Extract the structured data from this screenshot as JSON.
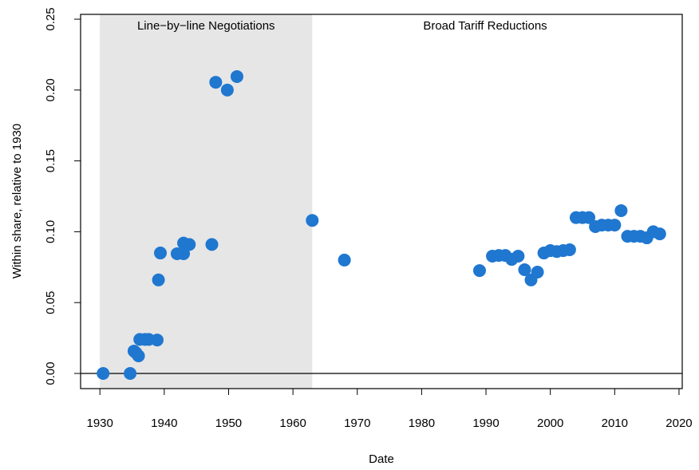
{
  "chart_data": {
    "type": "scatter",
    "x_label": "Date",
    "y_label": "Within share, relative to 1930",
    "xlim": [
      1927,
      2020.5
    ],
    "ylim": [
      -0.0107,
      0.2534
    ],
    "xticks": [
      1930,
      1940,
      1950,
      1960,
      1970,
      1980,
      1990,
      2000,
      2010,
      2020
    ],
    "yticks": [
      {
        "value": 0,
        "label": "0.00"
      },
      0.05,
      {
        "value": 0.1,
        "label": "0.10"
      },
      0.15,
      {
        "value": 0.2,
        "label": "0.20"
      },
      0.25
    ],
    "hline": 0,
    "shaded_region": {
      "x": [
        1930,
        1963
      ],
      "color": "#e6e6e6"
    },
    "annotations": [
      "Line−by−line Negotiations",
      "Broad Tariff Reductions"
    ],
    "series": [
      {
        "color": "#1f77d0",
        "x": [
          1930.5,
          1934.7,
          1935.3,
          1935.6,
          1936,
          1936.2,
          1937,
          1937.6,
          1938.9,
          1939.1,
          1939.4,
          1942,
          1943,
          1943,
          1943.9,
          1947.4,
          1948,
          1949.8,
          1951.3,
          1963,
          1968,
          1989,
          1991,
          1992,
          1993,
          1994,
          1995,
          1996,
          1997,
          1998,
          1999,
          2000,
          2001,
          2002,
          2003,
          2004,
          2005,
          2006,
          2007,
          2008,
          2009,
          2010,
          2011,
          2012,
          2013,
          2014,
          2015,
          2016,
          2017
        ],
        "values": [
          0,
          0,
          0.0158,
          0.0146,
          0.0124,
          0.024,
          0.024,
          0.024,
          0.0236,
          0.066,
          0.085,
          0.0845,
          0.092,
          0.0845,
          0.091,
          0.091,
          0.2055,
          0.2,
          0.2095,
          0.108,
          0.08,
          0.0726,
          0.0828,
          0.0833,
          0.0833,
          0.0805,
          0.0828,
          0.0732,
          0.066,
          0.0715,
          0.085,
          0.0867,
          0.086,
          0.0867,
          0.0873,
          0.11,
          0.11,
          0.11,
          0.1036,
          0.1047,
          0.1047,
          0.1047,
          0.1149,
          0.0968,
          0.0968,
          0.0968,
          0.0957,
          0.1,
          0.0985
        ]
      }
    ]
  }
}
